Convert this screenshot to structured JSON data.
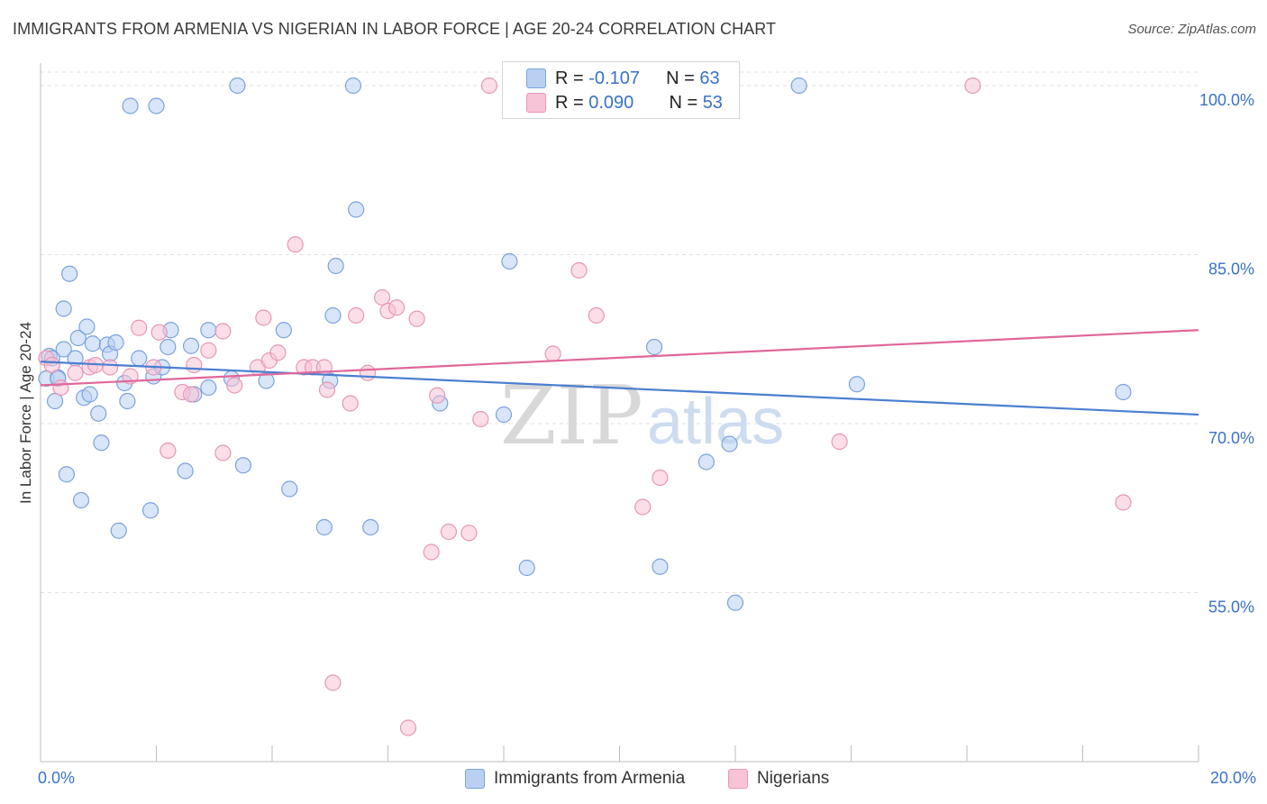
{
  "title": "IMMIGRANTS FROM ARMENIA VS NIGERIAN IN LABOR FORCE | AGE 20-24 CORRELATION CHART",
  "source": "Source: ZipAtlas.com",
  "watermark": {
    "zip": "ZIP",
    "atlas": "atlas"
  },
  "legend": {
    "rows": [
      {
        "r_label": "R = ",
        "r_value": "-0.107",
        "n_label": "N = ",
        "n_value": "63"
      },
      {
        "r_label": "R = ",
        "r_value": "0.090",
        "n_label": "N = ",
        "n_value": "53"
      }
    ]
  },
  "colors": {
    "blue": "#4a7fd0",
    "blue_fill": "#b9d0f2",
    "pink": "#e0679a",
    "pink_fill": "#f7c3d6",
    "tick_label": "#3a72c6"
  },
  "chart_data": {
    "type": "scatter",
    "title": "IMMIGRANTS FROM ARMENIA VS NIGERIAN IN LABOR FORCE | AGE 20-24 CORRELATION CHART",
    "xlabel": "",
    "ylabel": "In Labor Force | Age 20-24",
    "xlim": [
      0,
      20
    ],
    "ylim": [
      40,
      102
    ],
    "x_tick_labels": [
      "0.0%",
      "20.0%"
    ],
    "y_ticks": [
      55,
      70,
      85,
      100
    ],
    "y_tick_labels": [
      "55.0%",
      "70.0%",
      "85.0%",
      "100.0%"
    ],
    "grid": true,
    "legend_position": "top-center",
    "series": [
      {
        "name": "Immigrants from Armenia",
        "color": "#4a7fd0",
        "trend": {
          "x0": 0,
          "y0": 75.5,
          "x1": 20,
          "y1": 70.8
        },
        "points": [
          [
            0.1,
            74
          ],
          [
            0.15,
            76
          ],
          [
            0.2,
            75.8
          ],
          [
            0.25,
            72
          ],
          [
            0.3,
            74.1
          ],
          [
            0.4,
            76.6
          ],
          [
            0.4,
            80.2
          ],
          [
            0.45,
            65.5
          ],
          [
            0.5,
            83.3
          ],
          [
            0.6,
            75.8
          ],
          [
            0.65,
            77.6
          ],
          [
            0.7,
            63.2
          ],
          [
            0.75,
            72.3
          ],
          [
            0.8,
            78.6
          ],
          [
            0.85,
            72.6
          ],
          [
            0.9,
            77.1
          ],
          [
            1.0,
            70.9
          ],
          [
            1.05,
            68.3
          ],
          [
            1.15,
            77.0
          ],
          [
            1.2,
            76.2
          ],
          [
            1.3,
            77.2
          ],
          [
            1.35,
            60.5
          ],
          [
            1.45,
            73.6
          ],
          [
            1.5,
            72.0
          ],
          [
            1.55,
            98.2
          ],
          [
            1.7,
            75.8
          ],
          [
            1.9,
            62.3
          ],
          [
            2.0,
            98.2
          ],
          [
            1.95,
            74.2
          ],
          [
            2.1,
            75.0
          ],
          [
            2.2,
            76.8
          ],
          [
            2.25,
            78.3
          ],
          [
            2.5,
            65.8
          ],
          [
            2.6,
            76.9
          ],
          [
            2.65,
            72.6
          ],
          [
            2.9,
            78.3
          ],
          [
            2.9,
            73.2
          ],
          [
            3.3,
            74.0
          ],
          [
            3.4,
            100
          ],
          [
            3.5,
            66.3
          ],
          [
            3.9,
            73.8
          ],
          [
            4.2,
            78.3
          ],
          [
            4.3,
            64.2
          ],
          [
            4.9,
            60.8
          ],
          [
            5.0,
            73.8
          ],
          [
            5.05,
            79.6
          ],
          [
            5.1,
            84.0
          ],
          [
            5.4,
            100
          ],
          [
            5.45,
            89.0
          ],
          [
            5.7,
            60.8
          ],
          [
            6.9,
            71.8
          ],
          [
            8.0,
            70.8
          ],
          [
            8.1,
            84.4
          ],
          [
            8.4,
            57.2
          ],
          [
            10.6,
            76.8
          ],
          [
            10.7,
            57.3
          ],
          [
            11.5,
            66.6
          ],
          [
            11.9,
            68.2
          ],
          [
            12.0,
            54.1
          ],
          [
            13.1,
            100
          ],
          [
            14.1,
            73.5
          ],
          [
            18.7,
            72.8
          ],
          [
            0.3,
            74
          ]
        ]
      },
      {
        "name": "Nigerians",
        "color": "#e0679a",
        "trend": {
          "x0": 0,
          "y0": 73.4,
          "x1": 20,
          "y1": 78.3
        },
        "points": [
          [
            0.1,
            75.8
          ],
          [
            0.2,
            75.2
          ],
          [
            0.35,
            73.2
          ],
          [
            0.6,
            74.5
          ],
          [
            0.85,
            75.0
          ],
          [
            0.95,
            75.2
          ],
          [
            1.2,
            75.0
          ],
          [
            1.55,
            74.2
          ],
          [
            1.7,
            78.5
          ],
          [
            1.95,
            75.0
          ],
          [
            2.05,
            78.1
          ],
          [
            2.2,
            67.6
          ],
          [
            2.45,
            72.8
          ],
          [
            2.6,
            72.6
          ],
          [
            2.65,
            75.2
          ],
          [
            2.9,
            76.5
          ],
          [
            3.15,
            67.4
          ],
          [
            3.15,
            78.2
          ],
          [
            3.35,
            73.4
          ],
          [
            3.75,
            75.0
          ],
          [
            3.85,
            79.4
          ],
          [
            3.95,
            75.6
          ],
          [
            4.1,
            76.3
          ],
          [
            4.4,
            85.9
          ],
          [
            4.55,
            75.0
          ],
          [
            4.7,
            75.0
          ],
          [
            4.9,
            75.0
          ],
          [
            4.95,
            73.0
          ],
          [
            5.05,
            47.0
          ],
          [
            5.35,
            71.8
          ],
          [
            5.45,
            79.6
          ],
          [
            5.65,
            74.5
          ],
          [
            5.9,
            81.2
          ],
          [
            6.0,
            80.0
          ],
          [
            6.15,
            80.3
          ],
          [
            6.35,
            43.0
          ],
          [
            6.5,
            79.3
          ],
          [
            6.75,
            58.6
          ],
          [
            6.85,
            72.5
          ],
          [
            7.05,
            60.4
          ],
          [
            7.4,
            60.3
          ],
          [
            7.6,
            70.4
          ],
          [
            7.75,
            100
          ],
          [
            8.95,
            100
          ],
          [
            8.85,
            76.2
          ],
          [
            9.3,
            83.6
          ],
          [
            9.6,
            79.6
          ],
          [
            10.4,
            62.6
          ],
          [
            10.7,
            65.2
          ],
          [
            11.55,
            100
          ],
          [
            13.8,
            68.4
          ],
          [
            16.1,
            100
          ],
          [
            18.7,
            63.0
          ]
        ]
      }
    ]
  },
  "bottom_legend": [
    "Immigrants from Armenia",
    "Nigerians"
  ]
}
